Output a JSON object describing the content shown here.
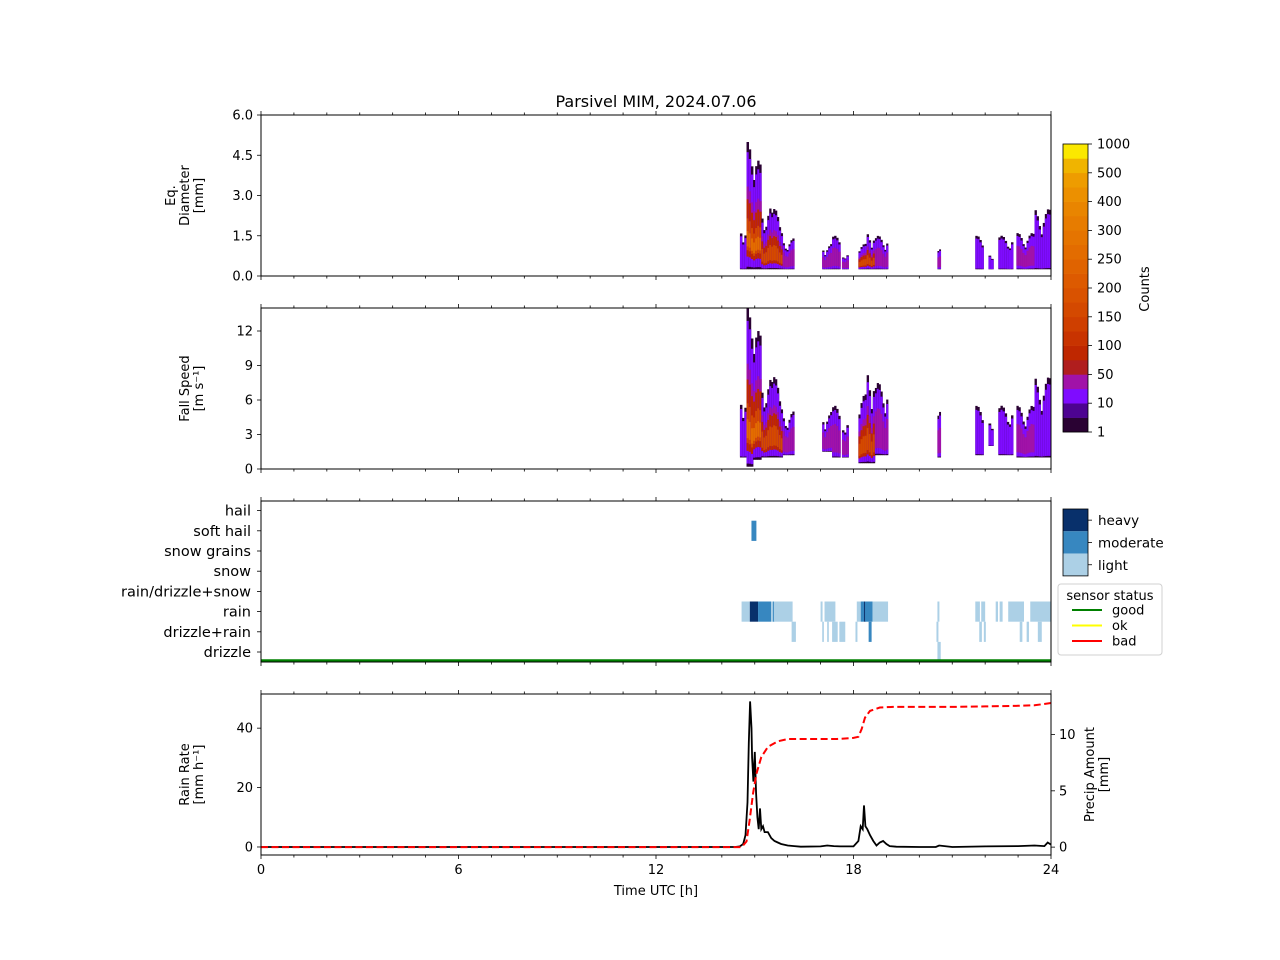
{
  "title": "Parsivel MIM, 2024.07.06",
  "colors": {
    "counts_levels": [
      "#2a0233",
      "#4d0391",
      "#7f0cff",
      "#a112a8",
      "#b01e1e",
      "#bf2700",
      "#c83300",
      "#cf3f00",
      "#d44900",
      "#d95200",
      "#dd5a00",
      "#e06300",
      "#e36c00",
      "#e57400",
      "#e77c00",
      "#e98500",
      "#ec9000",
      "#ee9c00",
      "#f0b400",
      "#fbe800"
    ],
    "intensity": {
      "light": "#acd0e6",
      "moderate": "#3787c0",
      "heavy": "#08306b"
    },
    "sensor": {
      "good": "#008000",
      "ok": "#ffff00",
      "bad": "#ff0000"
    },
    "rain_rate_line": "#000000",
    "precip_line": "#ff0000"
  },
  "chart_data": [
    {
      "id": "diameter",
      "type": "heatmap",
      "ylabel_lines": [
        "Eq.",
        "Diameter",
        "[mm]"
      ],
      "ylim": [
        0,
        6
      ],
      "yticks": [
        "0.0",
        "1.5",
        "3.0",
        "4.5",
        "6.0"
      ],
      "ytick_values": [
        0,
        1.5,
        3.0,
        4.5,
        6.0
      ],
      "xlim": [
        0,
        24
      ],
      "events": [
        {
          "t0": 14.55,
          "t1": 14.75,
          "ymax": 2.0,
          "core": 0
        },
        {
          "t0": 14.75,
          "t1": 14.95,
          "ymax": 5.0,
          "core": 3
        },
        {
          "t0": 14.95,
          "t1": 15.2,
          "ymax": 4.3,
          "core": 3
        },
        {
          "t0": 15.2,
          "t1": 15.5,
          "ymax": 2.6,
          "core": 2
        },
        {
          "t0": 15.5,
          "t1": 15.85,
          "ymax": 2.5,
          "core": 2
        },
        {
          "t0": 15.85,
          "t1": 16.2,
          "ymax": 1.4,
          "core": 1
        },
        {
          "t0": 17.05,
          "t1": 17.35,
          "ymax": 1.2,
          "core": 1
        },
        {
          "t0": 17.35,
          "t1": 17.6,
          "ymax": 1.5,
          "core": 1
        },
        {
          "t0": 17.65,
          "t1": 17.85,
          "ymax": 0.9,
          "core": 1
        },
        {
          "t0": 18.15,
          "t1": 18.4,
          "ymax": 1.2,
          "core": 2
        },
        {
          "t0": 18.4,
          "t1": 18.65,
          "ymax": 1.7,
          "core": 2
        },
        {
          "t0": 18.65,
          "t1": 19.05,
          "ymax": 1.5,
          "core": 1
        },
        {
          "t0": 20.55,
          "t1": 20.65,
          "ymax": 1.0,
          "core": 1
        },
        {
          "t0": 21.7,
          "t1": 21.95,
          "ymax": 1.5,
          "core": 0
        },
        {
          "t0": 22.1,
          "t1": 22.25,
          "ymax": 0.9,
          "core": 0
        },
        {
          "t0": 22.4,
          "t1": 22.85,
          "ymax": 1.5,
          "core": 0
        },
        {
          "t0": 22.95,
          "t1": 23.5,
          "ymax": 1.6,
          "core": 1
        },
        {
          "t0": 23.5,
          "t1": 24.0,
          "ymax": 2.5,
          "core": 0
        }
      ]
    },
    {
      "id": "fallspeed",
      "type": "heatmap",
      "ylabel_lines": [
        "Fall Speed",
        "[m s⁻¹]"
      ],
      "ylim": [
        0,
        14
      ],
      "yticks": [
        "0",
        "3",
        "6",
        "9",
        "12"
      ],
      "ytick_values": [
        0,
        3,
        6,
        9,
        12
      ],
      "xlim": [
        0,
        24
      ],
      "events": [
        {
          "t0": 14.55,
          "t1": 14.75,
          "ymin": 1.0,
          "ymax": 7.0,
          "core": 0
        },
        {
          "t0": 14.75,
          "t1": 14.95,
          "ymin": 0.2,
          "ymax": 14.0,
          "core": 3
        },
        {
          "t0": 14.95,
          "t1": 15.2,
          "ymin": 0.8,
          "ymax": 12.0,
          "core": 3
        },
        {
          "t0": 15.2,
          "t1": 15.5,
          "ymin": 1.0,
          "ymax": 8.0,
          "core": 2
        },
        {
          "t0": 15.5,
          "t1": 15.85,
          "ymin": 1.0,
          "ymax": 8.0,
          "core": 2
        },
        {
          "t0": 15.85,
          "t1": 16.2,
          "ymin": 1.2,
          "ymax": 5.0,
          "core": 1
        },
        {
          "t0": 17.05,
          "t1": 17.35,
          "ymin": 1.5,
          "ymax": 5.0,
          "core": 1
        },
        {
          "t0": 17.35,
          "t1": 17.6,
          "ymin": 1.0,
          "ymax": 5.5,
          "core": 1
        },
        {
          "t0": 17.65,
          "t1": 17.85,
          "ymin": 1.0,
          "ymax": 4.5,
          "core": 1
        },
        {
          "t0": 18.15,
          "t1": 18.4,
          "ymin": 0.5,
          "ymax": 6.5,
          "core": 2
        },
        {
          "t0": 18.4,
          "t1": 18.65,
          "ymin": 0.5,
          "ymax": 9.0,
          "core": 2
        },
        {
          "t0": 18.65,
          "t1": 19.05,
          "ymin": 1.2,
          "ymax": 7.5,
          "core": 1
        },
        {
          "t0": 20.55,
          "t1": 20.65,
          "ymin": 1.0,
          "ymax": 5.0,
          "core": 1
        },
        {
          "t0": 21.7,
          "t1": 21.95,
          "ymin": 1.2,
          "ymax": 5.5,
          "core": 0
        },
        {
          "t0": 22.1,
          "t1": 22.25,
          "ymin": 2.0,
          "ymax": 4.5,
          "core": 0
        },
        {
          "t0": 22.4,
          "t1": 22.85,
          "ymin": 1.2,
          "ymax": 5.5,
          "core": 0
        },
        {
          "t0": 22.95,
          "t1": 23.5,
          "ymin": 1.0,
          "ymax": 5.5,
          "core": 1
        },
        {
          "t0": 23.5,
          "t1": 24.0,
          "ymin": 1.0,
          "ymax": 8.0,
          "core": 0
        }
      ]
    },
    {
      "id": "preciptype",
      "type": "heatmap",
      "categories": [
        "drizzle",
        "drizzle+rain",
        "rain",
        "rain/drizzle+snow",
        "snow",
        "snow grains",
        "soft hail",
        "hail"
      ],
      "xlim": [
        0,
        24
      ],
      "segments": [
        {
          "cat": "soft hail",
          "t0": 14.9,
          "t1": 15.05,
          "level": "moderate"
        },
        {
          "cat": "rain",
          "t0": 14.6,
          "t1": 14.85,
          "level": "light"
        },
        {
          "cat": "rain",
          "t0": 14.85,
          "t1": 15.1,
          "level": "heavy"
        },
        {
          "cat": "rain",
          "t0": 15.1,
          "t1": 15.5,
          "level": "moderate"
        },
        {
          "cat": "rain",
          "t0": 15.5,
          "t1": 15.55,
          "level": "light"
        },
        {
          "cat": "rain",
          "t0": 15.55,
          "t1": 15.58,
          "level": "moderate"
        },
        {
          "cat": "rain",
          "t0": 15.58,
          "t1": 16.15,
          "level": "light"
        },
        {
          "cat": "rain",
          "t0": 17.0,
          "t1": 17.06,
          "level": "light"
        },
        {
          "cat": "rain",
          "t0": 17.12,
          "t1": 17.45,
          "level": "light"
        },
        {
          "cat": "rain",
          "t0": 18.1,
          "t1": 18.22,
          "level": "light"
        },
        {
          "cat": "rain",
          "t0": 18.22,
          "t1": 18.32,
          "level": "moderate"
        },
        {
          "cat": "rain",
          "t0": 18.32,
          "t1": 18.35,
          "level": "heavy"
        },
        {
          "cat": "rain",
          "t0": 18.35,
          "t1": 18.58,
          "level": "moderate"
        },
        {
          "cat": "rain",
          "t0": 18.58,
          "t1": 19.05,
          "level": "light"
        },
        {
          "cat": "rain",
          "t0": 20.55,
          "t1": 20.61,
          "level": "light"
        },
        {
          "cat": "rain",
          "t0": 21.7,
          "t1": 21.84,
          "level": "light"
        },
        {
          "cat": "rain",
          "t0": 21.88,
          "t1": 22.0,
          "level": "light"
        },
        {
          "cat": "rain",
          "t0": 22.32,
          "t1": 22.39,
          "level": "light"
        },
        {
          "cat": "rain",
          "t0": 22.44,
          "t1": 22.53,
          "level": "light"
        },
        {
          "cat": "rain",
          "t0": 22.7,
          "t1": 23.18,
          "level": "light"
        },
        {
          "cat": "rain",
          "t0": 23.37,
          "t1": 24.0,
          "level": "light"
        },
        {
          "cat": "drizzle+rain",
          "t0": 16.12,
          "t1": 16.25,
          "level": "light"
        },
        {
          "cat": "drizzle+rain",
          "t0": 17.05,
          "t1": 17.1,
          "level": "light"
        },
        {
          "cat": "drizzle+rain",
          "t0": 17.2,
          "t1": 17.25,
          "level": "light"
        },
        {
          "cat": "drizzle+rain",
          "t0": 17.35,
          "t1": 17.52,
          "level": "light"
        },
        {
          "cat": "drizzle+rain",
          "t0": 17.57,
          "t1": 17.75,
          "level": "light"
        },
        {
          "cat": "drizzle+rain",
          "t0": 18.06,
          "t1": 18.12,
          "level": "light"
        },
        {
          "cat": "drizzle+rain",
          "t0": 18.46,
          "t1": 18.55,
          "level": "moderate"
        },
        {
          "cat": "drizzle+rain",
          "t0": 20.52,
          "t1": 20.58,
          "level": "light"
        },
        {
          "cat": "drizzle+rain",
          "t0": 21.82,
          "t1": 21.9,
          "level": "light"
        },
        {
          "cat": "drizzle+rain",
          "t0": 21.96,
          "t1": 22.02,
          "level": "light"
        },
        {
          "cat": "drizzle+rain",
          "t0": 23.05,
          "t1": 23.13,
          "level": "light"
        },
        {
          "cat": "drizzle+rain",
          "t0": 23.26,
          "t1": 23.33,
          "level": "light"
        },
        {
          "cat": "drizzle+rain",
          "t0": 23.6,
          "t1": 23.72,
          "level": "light"
        },
        {
          "cat": "drizzle",
          "t0": 20.55,
          "t1": 20.65,
          "level": "light"
        }
      ],
      "sensor_status": {
        "status": "good",
        "t0": 0,
        "t1": 24
      },
      "intensity_legend": [
        "heavy",
        "moderate",
        "light"
      ],
      "sensor_legend_title": "sensor status",
      "sensor_legend": [
        "good",
        "ok",
        "bad"
      ]
    },
    {
      "id": "rainrate",
      "type": "line",
      "ylabel_lines": [
        "Rain Rate",
        "[mm h⁻¹]"
      ],
      "ylim": [
        -2.7,
        51.5
      ],
      "yticks": [
        "0",
        "20",
        "40"
      ],
      "ytick_values": [
        0,
        20,
        40
      ],
      "y2label_lines": [
        "Precip Amount",
        "[mm]"
      ],
      "y2lim": [
        -0.7,
        13.6
      ],
      "y2ticks": [
        "0",
        "5",
        "10"
      ],
      "y2tick_values": [
        0,
        5,
        10
      ],
      "xlim": [
        0,
        24
      ],
      "xticks": [
        "0",
        "6",
        "12",
        "18",
        "24"
      ],
      "xtick_values": [
        0,
        6,
        12,
        18,
        24
      ],
      "xlabel": "Time UTC [h]",
      "series": [
        {
          "name": "Rain Rate",
          "style": "solid",
          "x": [
            0,
            14.4,
            14.55,
            14.65,
            14.72,
            14.78,
            14.82,
            14.86,
            14.9,
            14.92,
            14.96,
            15.0,
            15.04,
            15.08,
            15.12,
            15.16,
            15.2,
            15.25,
            15.3,
            15.4,
            15.5,
            15.6,
            15.7,
            15.8,
            16.0,
            16.2,
            16.4,
            17.0,
            17.2,
            17.4,
            17.6,
            18.0,
            18.15,
            18.22,
            18.28,
            18.32,
            18.36,
            18.42,
            18.5,
            18.6,
            18.7,
            18.8,
            18.9,
            19.0,
            19.1,
            19.3,
            20.0,
            20.5,
            20.6,
            21.0,
            22.0,
            23.0,
            23.5,
            23.8,
            23.9,
            24.0
          ],
          "y": [
            0,
            0,
            0.2,
            1,
            4,
            15,
            35,
            49,
            40,
            30,
            22,
            32,
            18,
            10,
            6,
            13,
            6,
            7,
            5,
            5,
            3,
            2,
            1.5,
            1,
            0.5,
            0.3,
            0.1,
            0.2,
            0.5,
            0.3,
            0.2,
            0.2,
            2,
            7,
            6,
            14,
            7,
            6,
            4,
            2,
            0.5,
            1.5,
            2,
            1,
            0.3,
            0.1,
            0,
            0,
            0.5,
            0,
            0.2,
            0.3,
            0.5,
            0.3,
            1.5,
            0.8
          ]
        },
        {
          "name": "Precip Amount",
          "style": "dashed",
          "axis": "right",
          "x": [
            0,
            14.6,
            14.75,
            14.85,
            14.95,
            15.05,
            15.2,
            15.4,
            15.7,
            16.0,
            16.5,
            17.0,
            17.5,
            18.0,
            18.15,
            18.25,
            18.35,
            18.5,
            18.8,
            19.2,
            20,
            21,
            22,
            23,
            23.5,
            24
          ],
          "y": [
            0,
            0,
            0.5,
            2.5,
            4.8,
            6.5,
            8.0,
            8.9,
            9.4,
            9.6,
            9.6,
            9.6,
            9.6,
            9.7,
            9.8,
            10.5,
            11.5,
            12.1,
            12.4,
            12.45,
            12.45,
            12.45,
            12.5,
            12.55,
            12.6,
            12.8
          ]
        }
      ]
    }
  ],
  "colorbar": {
    "label": "Counts",
    "ticks": [
      "1",
      "10",
      "50",
      "100",
      "150",
      "200",
      "250",
      "300",
      "400",
      "500",
      "1000"
    ]
  }
}
